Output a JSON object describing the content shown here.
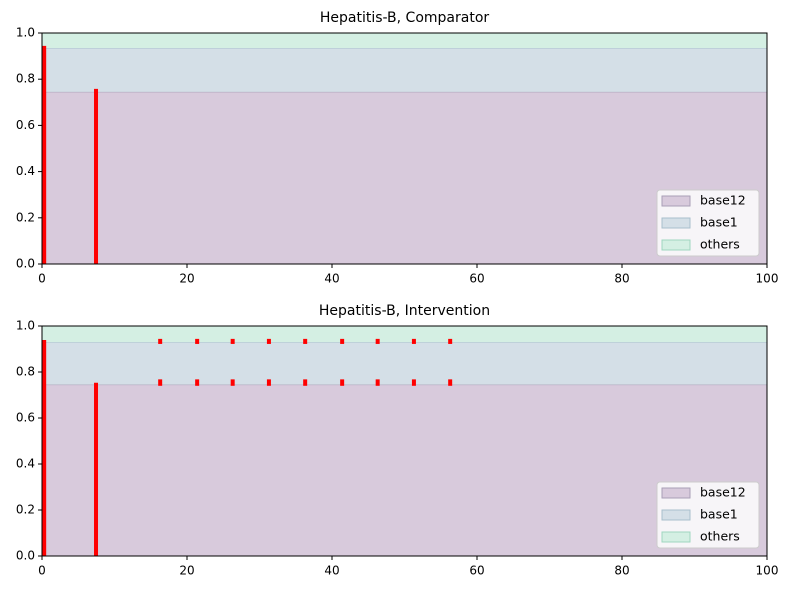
{
  "chart_data": [
    {
      "type": "area",
      "title": "Hepatitis-B, Comparator",
      "stacked": true,
      "x": [
        0,
        100
      ],
      "series": [
        {
          "name": "base12",
          "color": "#d8cadc",
          "edge": "#a99fb6",
          "values": [
            0.745,
            0.745
          ]
        },
        {
          "name": "base1",
          "color": "#d4dfe7",
          "edge": "#a8bfcc",
          "values": [
            0.19,
            0.19
          ]
        },
        {
          "name": "others",
          "color": "#d4efe3",
          "edge": "#9fd6bf",
          "values": [
            0.065,
            0.065
          ]
        }
      ],
      "segments": {
        "color": "#ff0000",
        "x": [
          0.3,
          7.45
        ],
        "y0": [
          0,
          0
        ],
        "y1": [
          0.944,
          0.758
        ]
      },
      "xlim": [
        0,
        100
      ],
      "ylim": [
        0,
        1
      ],
      "xticks": [
        0,
        20,
        40,
        60,
        80,
        100
      ],
      "yticks": [
        {
          "value": 0,
          "label": "0.0"
        },
        {
          "value": 0.2,
          "label": "0.2"
        },
        {
          "value": 0.4,
          "label": "0.4"
        },
        {
          "value": 0.6,
          "label": "0.6"
        },
        {
          "value": 0.8,
          "label": "0.8"
        },
        {
          "value": 1,
          "label": "1.0"
        }
      ],
      "legend": "lower right"
    },
    {
      "type": "area",
      "title": "Hepatitis-B, Intervention",
      "stacked": true,
      "x": [
        0,
        100
      ],
      "series": [
        {
          "name": "base12",
          "color": "#d8cadc",
          "edge": "#a99fb6",
          "values": [
            0.745,
            0.745
          ]
        },
        {
          "name": "base1",
          "color": "#d4dfe7",
          "edge": "#a8bfcc",
          "values": [
            0.185,
            0.185
          ]
        },
        {
          "name": "others",
          "color": "#d4efe3",
          "edge": "#9fd6bf",
          "values": [
            0.07,
            0.07
          ]
        }
      ],
      "segments": {
        "color": "#ff0000",
        "x": [
          0.3,
          7.45,
          16.3,
          16.3,
          21.4,
          21.4,
          26.3,
          26.3,
          31.3,
          31.3,
          36.3,
          36.3,
          41.4,
          41.4,
          46.3,
          46.3,
          51.3,
          51.3,
          56.3,
          56.3
        ],
        "y0": [
          0,
          0,
          0.74,
          0.922,
          0.74,
          0.922,
          0.74,
          0.922,
          0.74,
          0.922,
          0.74,
          0.922,
          0.74,
          0.922,
          0.74,
          0.922,
          0.74,
          0.922,
          0.74,
          0.922
        ],
        "y1": [
          0.939,
          0.753,
          0.768,
          0.944,
          0.768,
          0.944,
          0.768,
          0.944,
          0.768,
          0.944,
          0.768,
          0.944,
          0.768,
          0.944,
          0.768,
          0.944,
          0.768,
          0.944,
          0.768,
          0.944
        ]
      },
      "xlim": [
        0,
        100
      ],
      "ylim": [
        0,
        1
      ],
      "xticks": [
        0,
        20,
        40,
        60,
        80,
        100
      ],
      "yticks": [
        {
          "value": 0,
          "label": "0.0"
        },
        {
          "value": 0.2,
          "label": "0.2"
        },
        {
          "value": 0.4,
          "label": "0.4"
        },
        {
          "value": 0.6,
          "label": "0.6"
        },
        {
          "value": 0.8,
          "label": "0.8"
        },
        {
          "value": 1,
          "label": "1.0"
        }
      ],
      "legend": "lower right"
    }
  ]
}
